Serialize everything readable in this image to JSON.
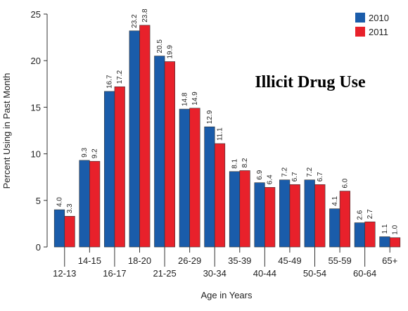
{
  "chart_data": {
    "type": "bar",
    "title": "Illicit Drug Use",
    "x_label": "Age in Years",
    "y_label": "Percent Using in Past Month",
    "categories": [
      "12-13",
      "14-15",
      "16-17",
      "18-20",
      "21-25",
      "26-29",
      "30-34",
      "35-39",
      "40-44",
      "45-49",
      "50-54",
      "55-59",
      "60-64",
      "65+"
    ],
    "series": [
      {
        "name": "2010",
        "color": "#1a5caa",
        "values": [
          4.0,
          9.3,
          16.7,
          23.2,
          20.5,
          14.8,
          12.9,
          8.1,
          6.9,
          7.2,
          7.2,
          4.1,
          2.6,
          1.1
        ],
        "value_labels": [
          "4.0",
          "9.3",
          "16.7",
          "23.2",
          "20.5",
          "14.8",
          "12.9",
          "8.1",
          "6.9",
          "7.2",
          "7.2",
          "4.1",
          "2.6",
          "1.1"
        ]
      },
      {
        "name": "2011",
        "color": "#e8212b",
        "values": [
          3.3,
          9.2,
          17.2,
          23.8,
          19.9,
          14.9,
          11.1,
          8.2,
          6.4,
          6.7,
          6.7,
          6.0,
          2.7,
          1.0
        ],
        "value_labels": [
          "3.3",
          "9.2",
          "17.2",
          "23.8",
          "19.9",
          "14.9",
          "11.1",
          "8.2",
          "6.4",
          "6.7",
          "6.7",
          "6.0",
          "2.7",
          "1.0"
        ]
      }
    ],
    "ylim": [
      0,
      25
    ],
    "yticks": [
      0,
      5,
      10,
      15,
      20,
      25
    ],
    "legend": "top-right"
  }
}
